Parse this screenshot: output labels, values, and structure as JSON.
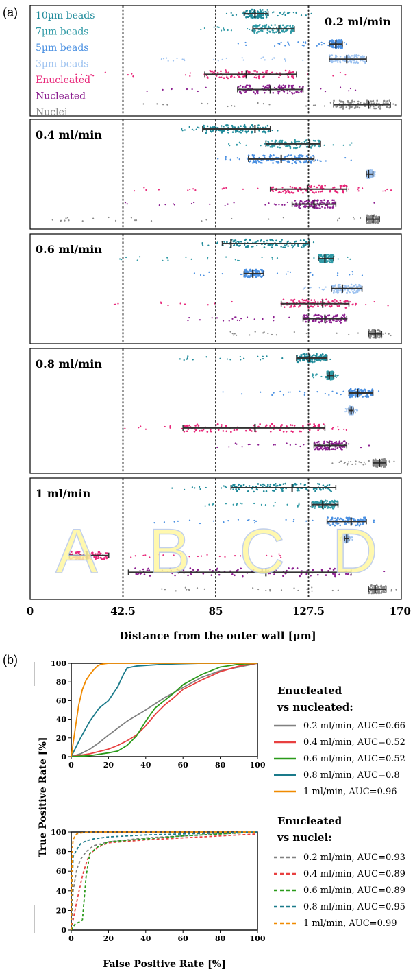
{
  "panel_labels": {
    "a": "(a)",
    "b": "(b)"
  },
  "colors": {
    "beads_10um": "#1e8a9a",
    "beads_7um": "#2f9aa6",
    "beads_5um": "#4a90e2",
    "beads_3um": "#9ec3f0",
    "enucleated": "#e8287a",
    "nucleated": "#8b1d8f",
    "nuclei": "#8a8a8a",
    "guide_line": "#333333",
    "roc_gray": "#808080",
    "roc_red": "#e84040",
    "roc_green": "#2a9a1a",
    "roc_teal": "#1a7a8a",
    "roc_orange": "#f08a00",
    "zone_letter": "#fff7a0"
  },
  "chart_data": [
    {
      "type": "scatter",
      "xlabel": "Distance from the outer wall [µm]",
      "xlim": [
        0,
        170
      ],
      "x_ticks": [
        "0",
        "42.5",
        "85",
        "127.5",
        "170"
      ],
      "guide_lines_x": [
        42.5,
        85,
        127.5
      ],
      "zone_letters": [
        "A",
        "B",
        "C",
        "D"
      ],
      "zone_centers_x": [
        21.25,
        63.75,
        106.25,
        148.75
      ],
      "legend": [
        "10µm beads",
        "7µm beads",
        "5µm beads",
        "3µm beads",
        "Enucleated",
        "Nucleated",
        "Nuclei"
      ],
      "panels": [
        {
          "title": "0.2 ml/min",
          "rows": [
            {
              "series": "10µm beads",
              "min": 85,
              "max": 130,
              "mean": 103,
              "sd_low": 98,
              "sd_high": 109
            },
            {
              "series": "7µm beads",
              "min": 77,
              "max": 124,
              "mean": 114,
              "sd_low": 102,
              "sd_high": 121
            },
            {
              "series": "5µm beads",
              "min": 95,
              "max": 147,
              "mean": 140,
              "sd_low": 137,
              "sd_high": 143
            },
            {
              "series": "3µm beads",
              "min": 60,
              "max": 155,
              "mean": 145,
              "sd_low": 137,
              "sd_high": 154
            },
            {
              "series": "Enucleated",
              "min": 20,
              "max": 150,
              "mean": 99,
              "sd_low": 80,
              "sd_high": 122
            },
            {
              "series": "Nucleated",
              "min": 45,
              "max": 155,
              "mean": 110,
              "sd_low": 95,
              "sd_high": 125
            },
            {
              "series": "Nuclei",
              "min": 50,
              "max": 168,
              "mean": 155,
              "sd_low": 139,
              "sd_high": 165
            }
          ]
        },
        {
          "title": "0.4 ml/min",
          "rows": [
            {
              "series": "10µm beads",
              "min": 68,
              "max": 115,
              "mean": 103,
              "sd_low": 79,
              "sd_high": 110
            },
            {
              "series": "7µm beads",
              "min": 90,
              "max": 148,
              "mean": 128,
              "sd_low": 108,
              "sd_high": 133
            },
            {
              "series": "5µm beads",
              "min": 86,
              "max": 148,
              "mean": 115,
              "sd_low": 100,
              "sd_high": 130
            },
            {
              "series": "3µm beads",
              "min": 154,
              "max": 158,
              "mean": 155,
              "sd_low": 154,
              "sd_high": 157
            },
            {
              "series": "Enucleated",
              "min": 43,
              "max": 168,
              "mean": 127,
              "sd_low": 110,
              "sd_high": 145
            },
            {
              "series": "Nucleated",
              "min": 42,
              "max": 160,
              "mean": 130,
              "sd_low": 120,
              "sd_high": 140
            },
            {
              "series": "Nuclei",
              "min": 10,
              "max": 163,
              "mean": 157,
              "sd_low": 154,
              "sd_high": 160
            }
          ]
        },
        {
          "title": "0.6 ml/min",
          "rows": [
            {
              "series": "10µm beads",
              "min": 75,
              "max": 130,
              "mean": 92,
              "sd_low": 88,
              "sd_high": 128
            },
            {
              "series": "7µm beads",
              "min": 35,
              "max": 150,
              "mean": 135,
              "sd_low": 132,
              "sd_high": 139
            },
            {
              "series": "5µm beads",
              "min": 72,
              "max": 154,
              "mean": 102,
              "sd_low": 98,
              "sd_high": 107
            },
            {
              "series": "3µm beads",
              "min": 125,
              "max": 154,
              "mean": 143,
              "sd_low": 138,
              "sd_high": 152
            },
            {
              "series": "Enucleated",
              "min": 38,
              "max": 164,
              "mean": 134,
              "sd_low": 115,
              "sd_high": 146
            },
            {
              "series": "Nucleated",
              "min": 70,
              "max": 145,
              "mean": 135,
              "sd_low": 125,
              "sd_high": 145
            },
            {
              "series": "Nuclei",
              "min": 90,
              "max": 168,
              "mean": 158,
              "sd_low": 155,
              "sd_high": 161
            }
          ]
        },
        {
          "title": "0.8 ml/min",
          "rows": [
            {
              "series": "10µm beads",
              "min": 68,
              "max": 140,
              "mean": 128,
              "sd_low": 122,
              "sd_high": 136
            },
            {
              "series": "7µm beads",
              "min": 129,
              "max": 142,
              "mean": 137,
              "sd_low": 136,
              "sd_high": 139
            },
            {
              "series": "5µm beads",
              "min": 85,
              "max": 160,
              "mean": 150,
              "sd_low": 146,
              "sd_high": 157
            },
            {
              "series": "3µm beads",
              "min": 144,
              "max": 150,
              "mean": 147,
              "sd_low": 146,
              "sd_high": 148
            },
            {
              "series": "Enucleated",
              "min": 25,
              "max": 148,
              "mean": 103,
              "sd_low": 70,
              "sd_high": 135
            },
            {
              "series": "Nucleated",
              "min": 85,
              "max": 162,
              "mean": 137,
              "sd_low": 130,
              "sd_high": 145
            },
            {
              "series": "Nuclei",
              "min": 138,
              "max": 168,
              "mean": 160,
              "sd_low": 157,
              "sd_high": 163
            }
          ]
        },
        {
          "title": "1 ml/min",
          "rows": [
            {
              "series": "10µm beads",
              "min": 65,
              "max": 142,
              "mean": 120,
              "sd_low": 92,
              "sd_high": 140
            },
            {
              "series": "7µm beads",
              "min": 80,
              "max": 142,
              "mean": 134,
              "sd_low": 129,
              "sd_high": 141
            },
            {
              "series": "5µm beads",
              "min": 55,
              "max": 162,
              "mean": 147,
              "sd_low": 136,
              "sd_high": 154
            },
            {
              "series": "3µm beads",
              "min": 142,
              "max": 148,
              "mean": 145,
              "sd_low": 144,
              "sd_high": 146
            },
            {
              "series": "Enucleated",
              "min": 15,
              "max": 115,
              "mean": 26,
              "sd_low": 18,
              "sd_high": 36
            },
            {
              "series": "Nucleated",
              "min": 20,
              "max": 165,
              "mean": 108,
              "sd_low": 45,
              "sd_high": 147
            },
            {
              "series": "Nuclei",
              "min": 60,
              "max": 168,
              "mean": 158,
              "sd_low": 155,
              "sd_high": 163
            }
          ]
        }
      ]
    },
    {
      "type": "line",
      "title": "Enucleated vs nucleated:",
      "xlabel": "",
      "ylabel": "True Positive Rate [%]",
      "xlim": [
        0,
        100
      ],
      "ylim": [
        0,
        100
      ],
      "x_ticks": [
        "0",
        "20",
        "40",
        "60",
        "80",
        "100"
      ],
      "y_ticks": [
        "0",
        "20",
        "40",
        "60",
        "80",
        "100"
      ],
      "series": [
        {
          "name": "0.2 ml/min, AUC=0.66",
          "style": "solid",
          "color": "#808080",
          "x": [
            0,
            5,
            10,
            15,
            20,
            30,
            40,
            50,
            60,
            70,
            80,
            90,
            100
          ],
          "y": [
            0,
            3,
            8,
            15,
            23,
            38,
            50,
            63,
            74,
            85,
            92,
            96,
            100
          ]
        },
        {
          "name": "0.4 ml/min, AUC=0.52",
          "style": "solid",
          "color": "#e84040",
          "x": [
            0,
            10,
            20,
            25,
            30,
            35,
            40,
            45,
            50,
            55,
            60,
            70,
            80,
            90,
            100
          ],
          "y": [
            0,
            3,
            8,
            12,
            17,
            23,
            33,
            45,
            55,
            63,
            72,
            82,
            91,
            97,
            100
          ]
        },
        {
          "name": "0.6 ml/min, AUC=0.52",
          "style": "solid",
          "color": "#2a9a1a",
          "x": [
            0,
            10,
            20,
            25,
            30,
            35,
            40,
            45,
            50,
            55,
            60,
            70,
            80,
            90,
            100
          ],
          "y": [
            0,
            1,
            4,
            6,
            12,
            22,
            38,
            52,
            60,
            68,
            77,
            88,
            96,
            99,
            100
          ]
        },
        {
          "name": "0.8 ml/min, AUC=0.8",
          "style": "solid",
          "color": "#1a7a8a",
          "x": [
            0,
            2,
            5,
            10,
            15,
            20,
            25,
            28,
            30,
            35,
            50,
            70,
            100
          ],
          "y": [
            0,
            8,
            20,
            38,
            52,
            60,
            75,
            88,
            95,
            97,
            99,
            100,
            100
          ]
        },
        {
          "name": "1 ml/min, AUC=0.96",
          "style": "solid",
          "color": "#f08a00",
          "x": [
            0,
            2,
            4,
            6,
            8,
            10,
            12,
            14,
            16,
            20,
            100
          ],
          "y": [
            0,
            28,
            55,
            72,
            82,
            88,
            93,
            97,
            99,
            100,
            100
          ]
        }
      ]
    },
    {
      "type": "line",
      "title": "Enucleated vs nuclei:",
      "xlabel": "False Positive Rate [%]",
      "ylabel": "True Positive Rate [%]",
      "xlim": [
        0,
        100
      ],
      "ylim": [
        0,
        100
      ],
      "x_ticks": [
        "0",
        "20",
        "40",
        "60",
        "80",
        "100"
      ],
      "y_ticks": [
        "0",
        "20",
        "40",
        "60",
        "80",
        "100"
      ],
      "series": [
        {
          "name": "0.2 ml/min, AUC=0.93",
          "style": "dashed",
          "color": "#808080",
          "x": [
            0,
            1,
            3,
            5,
            8,
            12,
            20,
            40,
            60,
            80,
            100
          ],
          "y": [
            0,
            40,
            62,
            72,
            80,
            86,
            90,
            94,
            96,
            98,
            100
          ]
        },
        {
          "name": "0.4 ml/min, AUC=0.89",
          "style": "dashed",
          "color": "#e84040",
          "x": [
            0,
            2,
            4,
            6,
            8,
            10,
            15,
            20,
            40,
            60,
            80,
            100
          ],
          "y": [
            0,
            20,
            38,
            55,
            68,
            78,
            85,
            89,
            92,
            94,
            96,
            98
          ]
        },
        {
          "name": "0.6 ml/min, AUC=0.89",
          "style": "dashed",
          "color": "#2a9a1a",
          "x": [
            0,
            2,
            3,
            6,
            8,
            10,
            15,
            20,
            40,
            60,
            80,
            100
          ],
          "y": [
            0,
            6,
            7,
            10,
            55,
            78,
            86,
            90,
            93,
            96,
            98,
            100
          ]
        },
        {
          "name": "0.8 ml/min, AUC=0.95",
          "style": "dashed",
          "color": "#1a7a8a",
          "x": [
            0,
            1,
            3,
            5,
            8,
            12,
            20,
            40,
            60,
            80,
            100
          ],
          "y": [
            0,
            75,
            82,
            88,
            91,
            93,
            95,
            97,
            98,
            99,
            100
          ]
        },
        {
          "name": "1 ml/min, AUC=0.99",
          "style": "dashed",
          "color": "#f08a00",
          "x": [
            0,
            0.5,
            1,
            2,
            3,
            5,
            10,
            20,
            100
          ],
          "y": [
            0,
            80,
            92,
            96,
            98,
            99,
            100,
            100,
            100
          ]
        }
      ]
    }
  ]
}
